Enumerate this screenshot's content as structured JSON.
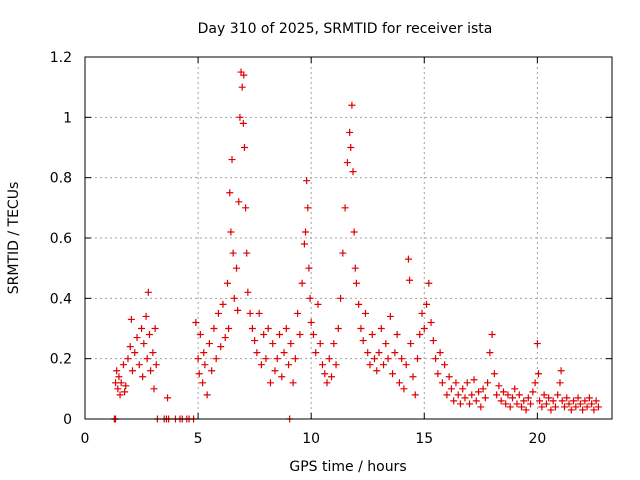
{
  "chart_data": {
    "type": "scatter",
    "title": "Day 310 of 2025, SRMTID for receiver ista",
    "xlabel": "GPS time / hours",
    "ylabel": "SRMTID / TECUs",
    "xlim": [
      0,
      23.3
    ],
    "ylim": [
      0,
      1.2
    ],
    "xticks": [
      0,
      5,
      10,
      15,
      20
    ],
    "xtick_labels": [
      "0",
      "5",
      "10",
      "15",
      "20"
    ],
    "yticks": [
      0,
      0.2,
      0.4,
      0.6,
      0.8,
      1.0,
      1.2
    ],
    "ytick_labels": [
      "0",
      "0.2",
      "0.4",
      "0.6",
      "0.8",
      "1",
      "1.2"
    ],
    "grid": true,
    "marker": "plus",
    "series": [
      {
        "name": "SRMTID",
        "color": "#e00000",
        "points": [
          [
            1.3,
            0.0
          ],
          [
            1.35,
            0.0
          ],
          [
            1.35,
            0.12
          ],
          [
            1.4,
            0.16
          ],
          [
            1.45,
            0.1
          ],
          [
            1.5,
            0.14
          ],
          [
            1.55,
            0.08
          ],
          [
            1.6,
            0.12
          ],
          [
            1.7,
            0.18
          ],
          [
            1.75,
            0.09
          ],
          [
            1.8,
            0.11
          ],
          [
            1.9,
            0.2
          ],
          [
            2.0,
            0.24
          ],
          [
            2.05,
            0.33
          ],
          [
            2.1,
            0.16
          ],
          [
            2.2,
            0.22
          ],
          [
            2.3,
            0.27
          ],
          [
            2.4,
            0.18
          ],
          [
            2.5,
            0.3
          ],
          [
            2.55,
            0.14
          ],
          [
            2.6,
            0.25
          ],
          [
            2.7,
            0.34
          ],
          [
            2.75,
            0.2
          ],
          [
            2.8,
            0.42
          ],
          [
            2.85,
            0.28
          ],
          [
            2.9,
            0.16
          ],
          [
            3.0,
            0.22
          ],
          [
            3.05,
            0.1
          ],
          [
            3.1,
            0.3
          ],
          [
            3.15,
            0.18
          ],
          [
            3.2,
            0.0
          ],
          [
            3.5,
            0.0
          ],
          [
            3.6,
            0.0
          ],
          [
            3.65,
            0.07
          ],
          [
            3.7,
            0.0
          ],
          [
            4.0,
            0.0
          ],
          [
            4.2,
            0.0
          ],
          [
            4.3,
            0.0
          ],
          [
            4.5,
            0.0
          ],
          [
            4.6,
            0.0
          ],
          [
            4.8,
            0.0
          ],
          [
            9.05,
            0.0
          ],
          [
            4.9,
            0.32
          ],
          [
            5.0,
            0.2
          ],
          [
            5.05,
            0.15
          ],
          [
            5.1,
            0.28
          ],
          [
            5.2,
            0.12
          ],
          [
            5.25,
            0.22
          ],
          [
            5.3,
            0.18
          ],
          [
            5.4,
            0.08
          ],
          [
            5.5,
            0.25
          ],
          [
            5.6,
            0.16
          ],
          [
            5.7,
            0.3
          ],
          [
            5.8,
            0.2
          ],
          [
            5.9,
            0.35
          ],
          [
            6.0,
            0.24
          ],
          [
            6.1,
            0.38
          ],
          [
            6.2,
            0.27
          ],
          [
            6.3,
            0.45
          ],
          [
            6.35,
            0.3
          ],
          [
            6.4,
            0.75
          ],
          [
            6.45,
            0.62
          ],
          [
            6.5,
            0.86
          ],
          [
            6.55,
            0.55
          ],
          [
            6.6,
            0.4
          ],
          [
            6.7,
            0.5
          ],
          [
            6.75,
            0.36
          ],
          [
            6.8,
            0.72
          ],
          [
            6.85,
            1.0
          ],
          [
            6.9,
            1.15
          ],
          [
            6.95,
            1.1
          ],
          [
            7.0,
            0.98
          ],
          [
            7.02,
            1.14
          ],
          [
            7.05,
            0.9
          ],
          [
            7.1,
            0.7
          ],
          [
            7.15,
            0.55
          ],
          [
            7.2,
            0.42
          ],
          [
            7.3,
            0.35
          ],
          [
            7.4,
            0.3
          ],
          [
            7.5,
            0.26
          ],
          [
            7.6,
            0.22
          ],
          [
            7.7,
            0.35
          ],
          [
            7.8,
            0.18
          ],
          [
            7.9,
            0.28
          ],
          [
            8.0,
            0.2
          ],
          [
            8.1,
            0.3
          ],
          [
            8.2,
            0.12
          ],
          [
            8.3,
            0.25
          ],
          [
            8.4,
            0.16
          ],
          [
            8.5,
            0.2
          ],
          [
            8.6,
            0.28
          ],
          [
            8.7,
            0.14
          ],
          [
            8.8,
            0.22
          ],
          [
            8.9,
            0.3
          ],
          [
            9.0,
            0.18
          ],
          [
            9.1,
            0.25
          ],
          [
            9.2,
            0.12
          ],
          [
            9.3,
            0.2
          ],
          [
            9.4,
            0.35
          ],
          [
            9.5,
            0.28
          ],
          [
            9.6,
            0.45
          ],
          [
            9.7,
            0.58
          ],
          [
            9.75,
            0.62
          ],
          [
            9.8,
            0.79
          ],
          [
            9.85,
            0.7
          ],
          [
            9.9,
            0.5
          ],
          [
            9.95,
            0.4
          ],
          [
            10.0,
            0.32
          ],
          [
            10.1,
            0.28
          ],
          [
            10.2,
            0.22
          ],
          [
            10.3,
            0.38
          ],
          [
            10.4,
            0.25
          ],
          [
            10.5,
            0.18
          ],
          [
            10.6,
            0.15
          ],
          [
            10.7,
            0.12
          ],
          [
            10.8,
            0.2
          ],
          [
            10.9,
            0.14
          ],
          [
            11.0,
            0.25
          ],
          [
            11.1,
            0.18
          ],
          [
            11.2,
            0.3
          ],
          [
            11.3,
            0.4
          ],
          [
            11.4,
            0.55
          ],
          [
            11.5,
            0.7
          ],
          [
            11.6,
            0.85
          ],
          [
            11.7,
            0.95
          ],
          [
            11.75,
            0.9
          ],
          [
            11.8,
            1.04
          ],
          [
            11.85,
            0.82
          ],
          [
            11.9,
            0.62
          ],
          [
            11.95,
            0.5
          ],
          [
            12.0,
            0.45
          ],
          [
            12.1,
            0.38
          ],
          [
            12.2,
            0.3
          ],
          [
            12.3,
            0.26
          ],
          [
            12.4,
            0.35
          ],
          [
            12.5,
            0.22
          ],
          [
            12.6,
            0.18
          ],
          [
            12.7,
            0.28
          ],
          [
            12.8,
            0.2
          ],
          [
            12.9,
            0.16
          ],
          [
            13.0,
            0.22
          ],
          [
            13.1,
            0.3
          ],
          [
            13.2,
            0.18
          ],
          [
            13.3,
            0.25
          ],
          [
            13.4,
            0.2
          ],
          [
            13.5,
            0.34
          ],
          [
            13.6,
            0.15
          ],
          [
            13.7,
            0.22
          ],
          [
            13.8,
            0.28
          ],
          [
            13.9,
            0.12
          ],
          [
            14.0,
            0.2
          ],
          [
            14.1,
            0.1
          ],
          [
            14.2,
            0.18
          ],
          [
            14.3,
            0.53
          ],
          [
            14.35,
            0.46
          ],
          [
            14.4,
            0.25
          ],
          [
            14.5,
            0.14
          ],
          [
            14.6,
            0.08
          ],
          [
            14.7,
            0.2
          ],
          [
            14.8,
            0.28
          ],
          [
            14.9,
            0.35
          ],
          [
            15.0,
            0.3
          ],
          [
            15.1,
            0.38
          ],
          [
            15.2,
            0.45
          ],
          [
            15.3,
            0.32
          ],
          [
            15.4,
            0.26
          ],
          [
            15.5,
            0.2
          ],
          [
            15.6,
            0.15
          ],
          [
            15.7,
            0.22
          ],
          [
            15.8,
            0.12
          ],
          [
            15.9,
            0.18
          ],
          [
            16.0,
            0.08
          ],
          [
            16.1,
            0.14
          ],
          [
            16.2,
            0.1
          ],
          [
            16.3,
            0.06
          ],
          [
            16.4,
            0.12
          ],
          [
            16.5,
            0.08
          ],
          [
            16.6,
            0.05
          ],
          [
            16.7,
            0.1
          ],
          [
            16.8,
            0.07
          ],
          [
            16.9,
            0.12
          ],
          [
            17.0,
            0.05
          ],
          [
            17.1,
            0.08
          ],
          [
            17.2,
            0.13
          ],
          [
            17.3,
            0.06
          ],
          [
            17.4,
            0.09
          ],
          [
            17.5,
            0.04
          ],
          [
            17.6,
            0.1
          ],
          [
            17.7,
            0.07
          ],
          [
            17.8,
            0.12
          ],
          [
            17.9,
            0.22
          ],
          [
            18.0,
            0.28
          ],
          [
            18.1,
            0.15
          ],
          [
            18.2,
            0.08
          ],
          [
            18.3,
            0.11
          ],
          [
            18.4,
            0.06
          ],
          [
            18.5,
            0.09
          ],
          [
            18.6,
            0.05
          ],
          [
            18.7,
            0.08
          ],
          [
            18.8,
            0.04
          ],
          [
            18.9,
            0.07
          ],
          [
            19.0,
            0.1
          ],
          [
            19.1,
            0.05
          ],
          [
            19.2,
            0.08
          ],
          [
            19.3,
            0.04
          ],
          [
            19.4,
            0.06
          ],
          [
            19.5,
            0.03
          ],
          [
            19.6,
            0.07
          ],
          [
            19.7,
            0.05
          ],
          [
            19.8,
            0.09
          ],
          [
            19.9,
            0.12
          ],
          [
            20.0,
            0.25
          ],
          [
            20.05,
            0.15
          ],
          [
            20.1,
            0.06
          ],
          [
            20.2,
            0.04
          ],
          [
            20.3,
            0.08
          ],
          [
            20.4,
            0.05
          ],
          [
            20.5,
            0.07
          ],
          [
            20.6,
            0.03
          ],
          [
            20.7,
            0.06
          ],
          [
            20.8,
            0.04
          ],
          [
            20.9,
            0.08
          ],
          [
            21.0,
            0.12
          ],
          [
            21.05,
            0.16
          ],
          [
            21.1,
            0.06
          ],
          [
            21.2,
            0.04
          ],
          [
            21.3,
            0.07
          ],
          [
            21.4,
            0.05
          ],
          [
            21.5,
            0.03
          ],
          [
            21.6,
            0.06
          ],
          [
            21.7,
            0.04
          ],
          [
            21.8,
            0.07
          ],
          [
            21.9,
            0.05
          ],
          [
            22.0,
            0.03
          ],
          [
            22.1,
            0.06
          ],
          [
            22.2,
            0.04
          ],
          [
            22.3,
            0.07
          ],
          [
            22.4,
            0.05
          ],
          [
            22.5,
            0.03
          ],
          [
            22.6,
            0.06
          ],
          [
            22.7,
            0.04
          ]
        ]
      }
    ]
  }
}
